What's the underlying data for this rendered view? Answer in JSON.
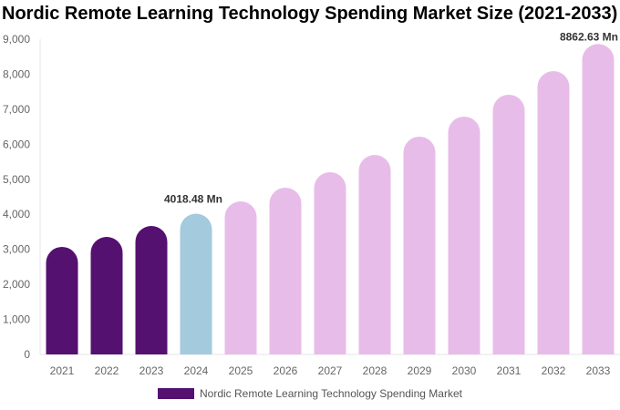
{
  "chart_data": {
    "type": "bar",
    "title": "Nordic Remote Learning Technology Spending Market Size (2021-2033)",
    "categories": [
      "2021",
      "2022",
      "2023",
      "2024",
      "2025",
      "2026",
      "2027",
      "2028",
      "2029",
      "2030",
      "2031",
      "2032",
      "2033"
    ],
    "series": [
      {
        "name": "Nordic Remote Learning Technology Spending Market",
        "values": [
          3070,
          3356,
          3668,
          4018.48,
          4370,
          4761,
          5203,
          5697,
          6218,
          6790,
          7414,
          8090,
          8862.63
        ]
      }
    ],
    "data_labels": [
      {
        "category": "2024",
        "text": "4018.48 Mn"
      },
      {
        "category": "2033",
        "text": "8862.63 Mn"
      }
    ],
    "ylim": [
      0,
      9000
    ],
    "yticks": [
      0,
      1000,
      2000,
      3000,
      4000,
      5000,
      6000,
      7000,
      8000,
      9000
    ],
    "ytick_labels": [
      "0",
      "1,000",
      "2,000",
      "3,000",
      "4,000",
      "5,000",
      "6,000",
      "7,000",
      "8,000",
      "9,000"
    ],
    "grid": false,
    "legend_position": "bottom",
    "colors": {
      "historical": "#541170",
      "current": "#A3CADD",
      "forecast": "#E8BCE8"
    }
  }
}
